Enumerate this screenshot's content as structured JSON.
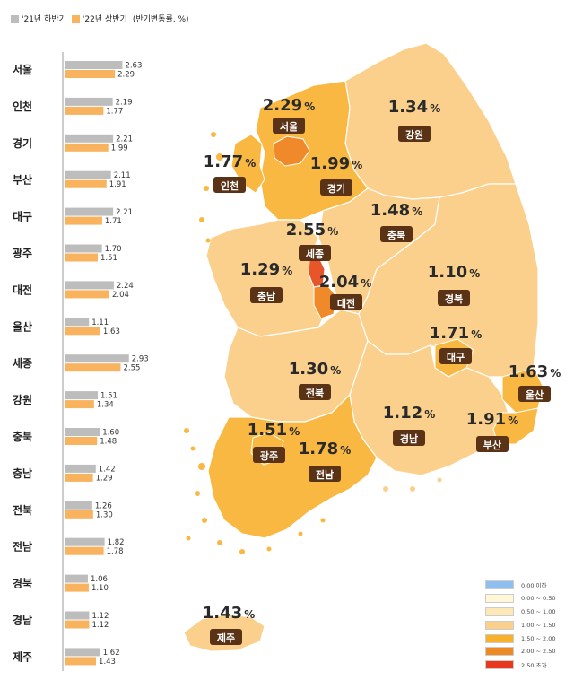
{
  "legend": {
    "h2021_label": "'21년 하반기",
    "h2022_label": "'22년 상반기",
    "unit_label": "(반기변동률, %)",
    "h2021_color": "#bdbdbd",
    "h2022_color": "#f9b25e"
  },
  "chart_data": {
    "type": "bar",
    "orientation": "horizontal",
    "categories": [
      "서울",
      "인천",
      "경기",
      "부산",
      "대구",
      "광주",
      "대전",
      "울산",
      "세종",
      "강원",
      "충북",
      "충남",
      "전북",
      "전남",
      "경북",
      "경남",
      "제주"
    ],
    "series": [
      {
        "name": "'21년 하반기",
        "values": [
          2.63,
          2.19,
          2.21,
          2.11,
          2.21,
          1.7,
          2.24,
          1.11,
          2.93,
          1.51,
          1.6,
          1.42,
          1.26,
          1.82,
          1.06,
          1.12,
          1.62
        ],
        "labels": [
          "2.63",
          "2.19",
          "2.21",
          "2.11",
          "2.21",
          "1.70",
          "2.24",
          "1.11",
          "2.93",
          "1.51",
          "1.60",
          "1.42",
          "1.26",
          "1.82",
          "1.06",
          "1.12",
          "1.62"
        ]
      },
      {
        "name": "'22년 상반기",
        "values": [
          2.29,
          1.77,
          1.99,
          1.91,
          1.71,
          1.51,
          2.04,
          1.63,
          2.55,
          1.34,
          1.48,
          1.29,
          1.3,
          1.78,
          1.1,
          1.12,
          1.43
        ],
        "labels": [
          "2.29",
          "1.77",
          "1.99",
          "1.91",
          "1.71",
          "1.51",
          "2.04",
          "1.63",
          "2.55",
          "1.34",
          "1.48",
          "1.29",
          "1.30",
          "1.78",
          "1.10",
          "1.12",
          "1.43"
        ]
      }
    ]
  },
  "map": {
    "regions": [
      {
        "name": "서울",
        "value": "2.29",
        "unit": "%",
        "color": "#f5a623"
      },
      {
        "name": "인천",
        "value": "1.77",
        "unit": "%",
        "color": "#f9b842"
      },
      {
        "name": "경기",
        "value": "1.99",
        "unit": "%",
        "color": "#f9b842"
      },
      {
        "name": "강원",
        "value": "1.34",
        "unit": "%",
        "color": "#fbd08c"
      },
      {
        "name": "세종",
        "value": "2.55",
        "unit": "%",
        "color": "#e8552a"
      },
      {
        "name": "충북",
        "value": "1.48",
        "unit": "%",
        "color": "#fbd08c"
      },
      {
        "name": "충남",
        "value": "1.29",
        "unit": "%",
        "color": "#fbd08c"
      },
      {
        "name": "대전",
        "value": "2.04",
        "unit": "%",
        "color": "#f0892a"
      },
      {
        "name": "경북",
        "value": "1.10",
        "unit": "%",
        "color": "#fbd08c"
      },
      {
        "name": "대구",
        "value": "1.71",
        "unit": "%",
        "color": "#f9b842"
      },
      {
        "name": "전북",
        "value": "1.30",
        "unit": "%",
        "color": "#fbd08c"
      },
      {
        "name": "울산",
        "value": "1.63",
        "unit": "%",
        "color": "#f9b842"
      },
      {
        "name": "경남",
        "value": "1.12",
        "unit": "%",
        "color": "#fbd08c"
      },
      {
        "name": "부산",
        "value": "1.91",
        "unit": "%",
        "color": "#f9b842"
      },
      {
        "name": "광주",
        "value": "1.51",
        "unit": "%",
        "color": "#f9b842"
      },
      {
        "name": "전남",
        "value": "1.78",
        "unit": "%",
        "color": "#f9b842"
      },
      {
        "name": "제주",
        "value": "1.43",
        "unit": "%",
        "color": "#fbd08c"
      }
    ]
  },
  "scale_legend": [
    {
      "label": "0.00 이하",
      "color": "#8fbfef"
    },
    {
      "label": "0.00 ~ 0.50",
      "color": "#fff7d6"
    },
    {
      "label": "0.50 ~ 1.00",
      "color": "#fde9b8"
    },
    {
      "label": "1.00 ~ 1.50",
      "color": "#fbd08c"
    },
    {
      "label": "1.50 ~ 2.00",
      "color": "#f9b02a"
    },
    {
      "label": "2.00 ~ 2.50",
      "color": "#ee8a24"
    },
    {
      "label": "2.50 초과",
      "color": "#e8381d"
    }
  ]
}
